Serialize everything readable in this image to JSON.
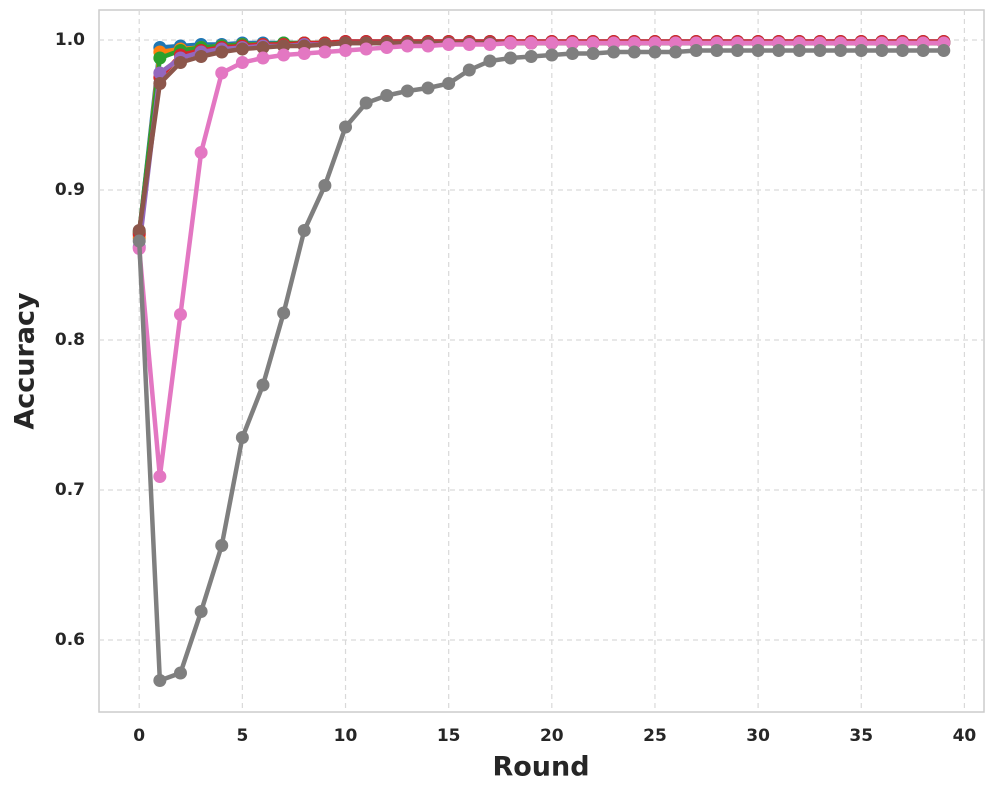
{
  "chart_data": {
    "type": "line",
    "x_label": "Round",
    "y_label": "Accuracy",
    "x": [
      0,
      1,
      2,
      3,
      4,
      5,
      6,
      7,
      8,
      9,
      10,
      11,
      12,
      13,
      14,
      15,
      16,
      17,
      18,
      19,
      20,
      21,
      22,
      23,
      24,
      25,
      26,
      27,
      28,
      29,
      30,
      31,
      32,
      33,
      34,
      35,
      36,
      37,
      38,
      39
    ],
    "series": [
      {
        "color": "#1f77b4",
        "values": [
          0.87,
          0.995,
          0.996,
          0.997,
          0.997,
          0.998,
          0.998,
          0.998,
          0.998,
          0.998,
          0.999,
          0.999,
          0.999,
          0.999,
          0.999,
          0.999,
          0.999,
          0.999,
          0.999,
          0.999,
          0.999,
          0.999,
          0.999,
          0.999,
          0.999,
          0.999,
          0.999,
          0.999,
          0.999,
          0.999,
          0.999,
          0.999,
          0.999,
          0.999,
          0.999,
          0.999,
          0.999,
          0.999,
          0.999,
          0.999
        ]
      },
      {
        "color": "#ff7f0e",
        "values": [
          0.868,
          0.992,
          0.994,
          0.995,
          0.996,
          0.997,
          0.997,
          0.997,
          0.998,
          0.998,
          0.998,
          0.998,
          0.998,
          0.998,
          0.998,
          0.998,
          0.998,
          0.998,
          0.998,
          0.998,
          0.998,
          0.998,
          0.998,
          0.998,
          0.998,
          0.998,
          0.998,
          0.998,
          0.998,
          0.998,
          0.998,
          0.998,
          0.998,
          0.998,
          0.998,
          0.998,
          0.998,
          0.998,
          0.998,
          0.998
        ]
      },
      {
        "color": "#2ca02c",
        "values": [
          0.872,
          0.988,
          0.993,
          0.995,
          0.996,
          0.997,
          0.997,
          0.998,
          0.998,
          0.998,
          0.998,
          0.998,
          0.998,
          0.998,
          0.998,
          0.998,
          0.998,
          0.998,
          0.998,
          0.998,
          0.998,
          0.998,
          0.998,
          0.998,
          0.998,
          0.998,
          0.998,
          0.998,
          0.998,
          0.998,
          0.998,
          0.998,
          0.998,
          0.998,
          0.998,
          0.998,
          0.998,
          0.998,
          0.998,
          0.998
        ]
      },
      {
        "color": "#d62728",
        "values": [
          0.871,
          0.975,
          0.99,
          0.993,
          0.995,
          0.996,
          0.997,
          0.997,
          0.998,
          0.998,
          0.999,
          0.999,
          0.999,
          0.999,
          0.999,
          0.999,
          0.999,
          0.999,
          0.999,
          0.999,
          0.999,
          0.999,
          0.999,
          0.999,
          0.999,
          0.999,
          0.999,
          0.999,
          0.999,
          0.999,
          0.999,
          0.999,
          0.999,
          0.999,
          0.999,
          0.999,
          0.999,
          0.999,
          0.999,
          0.999
        ]
      },
      {
        "color": "#9467bd",
        "values": [
          0.862,
          0.978,
          0.988,
          0.992,
          0.994,
          0.995,
          0.996,
          0.996,
          0.997,
          0.997,
          0.998,
          0.998,
          0.998,
          0.998,
          0.998,
          0.998,
          0.998,
          0.998,
          0.998,
          0.998,
          0.998,
          0.998,
          0.998,
          0.998,
          0.998,
          0.998,
          0.998,
          0.998,
          0.998,
          0.998,
          0.998,
          0.998,
          0.998,
          0.998,
          0.998,
          0.998,
          0.998,
          0.998,
          0.998,
          0.998
        ]
      },
      {
        "color": "#8c564b",
        "values": [
          0.873,
          0.971,
          0.985,
          0.989,
          0.992,
          0.994,
          0.995,
          0.996,
          0.996,
          0.997,
          0.998,
          0.998,
          0.998,
          0.998,
          0.998,
          0.998,
          0.998,
          0.998,
          0.998,
          0.998,
          0.998,
          0.998,
          0.998,
          0.998,
          0.998,
          0.998,
          0.998,
          0.998,
          0.998,
          0.998,
          0.998,
          0.998,
          0.998,
          0.998,
          0.998,
          0.998,
          0.998,
          0.998,
          0.998,
          0.998
        ]
      },
      {
        "color": "#e377c2",
        "values": [
          0.861,
          0.709,
          0.817,
          0.925,
          0.978,
          0.985,
          0.988,
          0.99,
          0.991,
          0.992,
          0.993,
          0.994,
          0.995,
          0.996,
          0.996,
          0.997,
          0.997,
          0.997,
          0.998,
          0.998,
          0.998,
          0.998,
          0.998,
          0.998,
          0.998,
          0.998,
          0.998,
          0.998,
          0.998,
          0.998,
          0.998,
          0.998,
          0.998,
          0.998,
          0.998,
          0.998,
          0.998,
          0.998,
          0.998,
          0.998
        ]
      },
      {
        "color": "#7f7f7f",
        "values": [
          0.866,
          0.573,
          0.578,
          0.619,
          0.663,
          0.735,
          0.77,
          0.818,
          0.873,
          0.903,
          0.942,
          0.958,
          0.963,
          0.966,
          0.968,
          0.971,
          0.98,
          0.986,
          0.988,
          0.989,
          0.99,
          0.991,
          0.991,
          0.992,
          0.992,
          0.992,
          0.992,
          0.993,
          0.993,
          0.993,
          0.993,
          0.993,
          0.993,
          0.993,
          0.993,
          0.993,
          0.993,
          0.993,
          0.993,
          0.993
        ]
      }
    ],
    "xlim": [
      -1.95,
      40.95
    ],
    "xticks": [
      0,
      5,
      10,
      15,
      20,
      25,
      30,
      35,
      40
    ],
    "ylim": [
      0.552,
      1.02
    ],
    "yticks": [
      0.6,
      0.7,
      0.8,
      0.9,
      {
        "value": 1.0,
        "label": "1.0"
      }
    ],
    "grid": true
  }
}
